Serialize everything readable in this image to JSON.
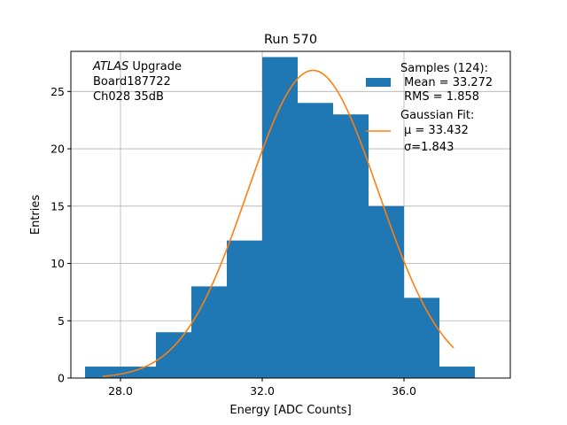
{
  "chart_data": {
    "type": "bar",
    "title": "Run 570",
    "xlabel": "Energy [ADC Counts]",
    "ylabel": "Entries",
    "xlim": [
      26.6,
      39.0
    ],
    "ylim": [
      0,
      28.5
    ],
    "x_ticks": [
      28.0,
      32.0,
      36.0
    ],
    "x_tick_labels": [
      "28.0",
      "32.0",
      "36.0"
    ],
    "y_ticks": [
      0,
      5,
      10,
      15,
      20,
      25
    ],
    "y_tick_labels": [
      "0",
      "5",
      "10",
      "15",
      "20",
      "25"
    ],
    "grid": true,
    "histogram": {
      "bin_edges": [
        27,
        28,
        29,
        30,
        31,
        32,
        33,
        34,
        35,
        36,
        37,
        38
      ],
      "counts": [
        1,
        1,
        4,
        8,
        12,
        28,
        24,
        23,
        15,
        7,
        1
      ],
      "color": "#1f77b4"
    },
    "fit": {
      "type": "gaussian",
      "mu": 33.432,
      "sigma": 1.843,
      "x_range": [
        27.5,
        37.4
      ],
      "color": "#ff7f0e"
    },
    "legend": {
      "placement": "top-right",
      "entries": [
        {
          "label_lines": [
            "Samples (124):",
            " Mean = 33.272",
            " RMS = 1.858"
          ],
          "marker": "patch",
          "color": "#1f77b4"
        },
        {
          "label_lines": [
            "Gaussian Fit:",
            "μ = 33.432",
            "σ=1.843"
          ],
          "marker": "line",
          "color": "#ff7f0e"
        }
      ]
    },
    "annotation": {
      "lines": [
        "ATLAS Upgrade",
        "Board187722",
        "Ch028 35dB"
      ],
      "italic_word": "ATLAS"
    }
  }
}
